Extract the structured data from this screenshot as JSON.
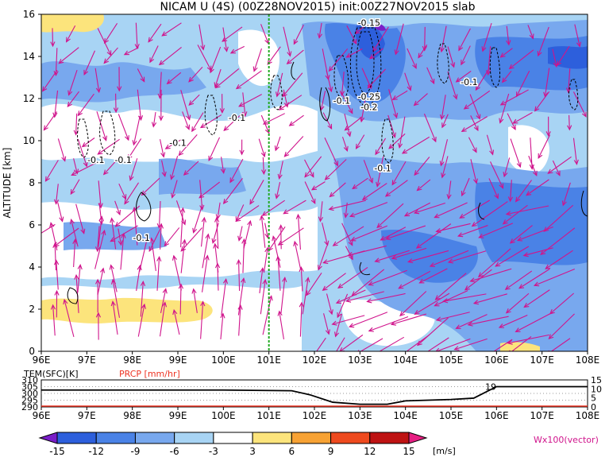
{
  "title": "NICAM U (4S) (00Z28NOV2015) init:00Z27NOV2015 slab",
  "chart_data": [
    {
      "type": "heatmap",
      "ylabel": "ALTITUDE [km]",
      "x_ticks": [
        "96E",
        "97E",
        "98E",
        "99E",
        "100E",
        "101E",
        "102E",
        "103E",
        "104E",
        "105E",
        "106E",
        "107E",
        "108E"
      ],
      "y_ticks": [
        "0",
        "2",
        "4",
        "6",
        "8",
        "10",
        "12",
        "14",
        "16"
      ],
      "xlim": [
        96,
        108
      ],
      "ylim": [
        0,
        16
      ],
      "marker_line_x": 101,
      "contour_labels": [
        {
          "text": "-0.15",
          "x": 103.2,
          "y": 15.6
        },
        {
          "text": "-0.1",
          "x": 105.4,
          "y": 12.8
        },
        {
          "text": "-0.25",
          "x": 103.2,
          "y": 12.1
        },
        {
          "text": "-0.1",
          "x": 102.6,
          "y": 11.9
        },
        {
          "text": "-0.2",
          "x": 103.2,
          "y": 11.6
        },
        {
          "text": "-0.1",
          "x": 100.3,
          "y": 11.1
        },
        {
          "text": "-0.1",
          "x": 99.0,
          "y": 9.9
        },
        {
          "text": "-0.1",
          "x": 97.8,
          "y": 9.1
        },
        {
          "text": "-0.1",
          "x": 97.2,
          "y": 9.1
        },
        {
          "text": "-0.1",
          "x": 103.5,
          "y": 8.7
        },
        {
          "text": "-0.1",
          "x": 98.2,
          "y": 5.4
        }
      ]
    },
    {
      "type": "line",
      "left_axis_label": "TEM(SFC)[K]",
      "right_axis_label": "PRCP [mm/hr]",
      "left_ticks": [
        "310",
        "305",
        "300",
        "295",
        "290"
      ],
      "right_ticks": [
        "15",
        "10",
        "5",
        "0"
      ],
      "x_ticks": [
        "96E",
        "97E",
        "98E",
        "99E",
        "100E",
        "101E",
        "102E",
        "103E",
        "104E",
        "105E",
        "106E",
        "107E",
        "108E"
      ],
      "inline_label": "19",
      "temperature_K": {
        "x": [
          96,
          100,
          101.5,
          101.9,
          102.4,
          103.0,
          103.6,
          104.0,
          104.5,
          105.0,
          105.5,
          106.0,
          108
        ],
        "y": [
          302.5,
          302.5,
          302.0,
          299.0,
          293.5,
          292.0,
          292.0,
          294.5,
          295.0,
          295.5,
          296.5,
          305.0,
          305.0
        ]
      },
      "precipitation_mm_hr": {
        "x": [
          96,
          108
        ],
        "y": [
          0,
          0
        ]
      }
    }
  ],
  "colorbar": {
    "ticks": [
      "-15",
      "-12",
      "-9",
      "-6",
      "-3",
      "3",
      "6",
      "9",
      "12",
      "15"
    ],
    "unit": "[m/s]",
    "colors": [
      "#7a1ec8",
      "#2d5fdc",
      "#4a82e6",
      "#78a8ee",
      "#a8d4f4",
      "#ffffff",
      "#fce47c",
      "#f7a234",
      "#ee4a1e",
      "#be1212",
      "#e61e82"
    ]
  },
  "vector_label": "Wx100(vector)"
}
